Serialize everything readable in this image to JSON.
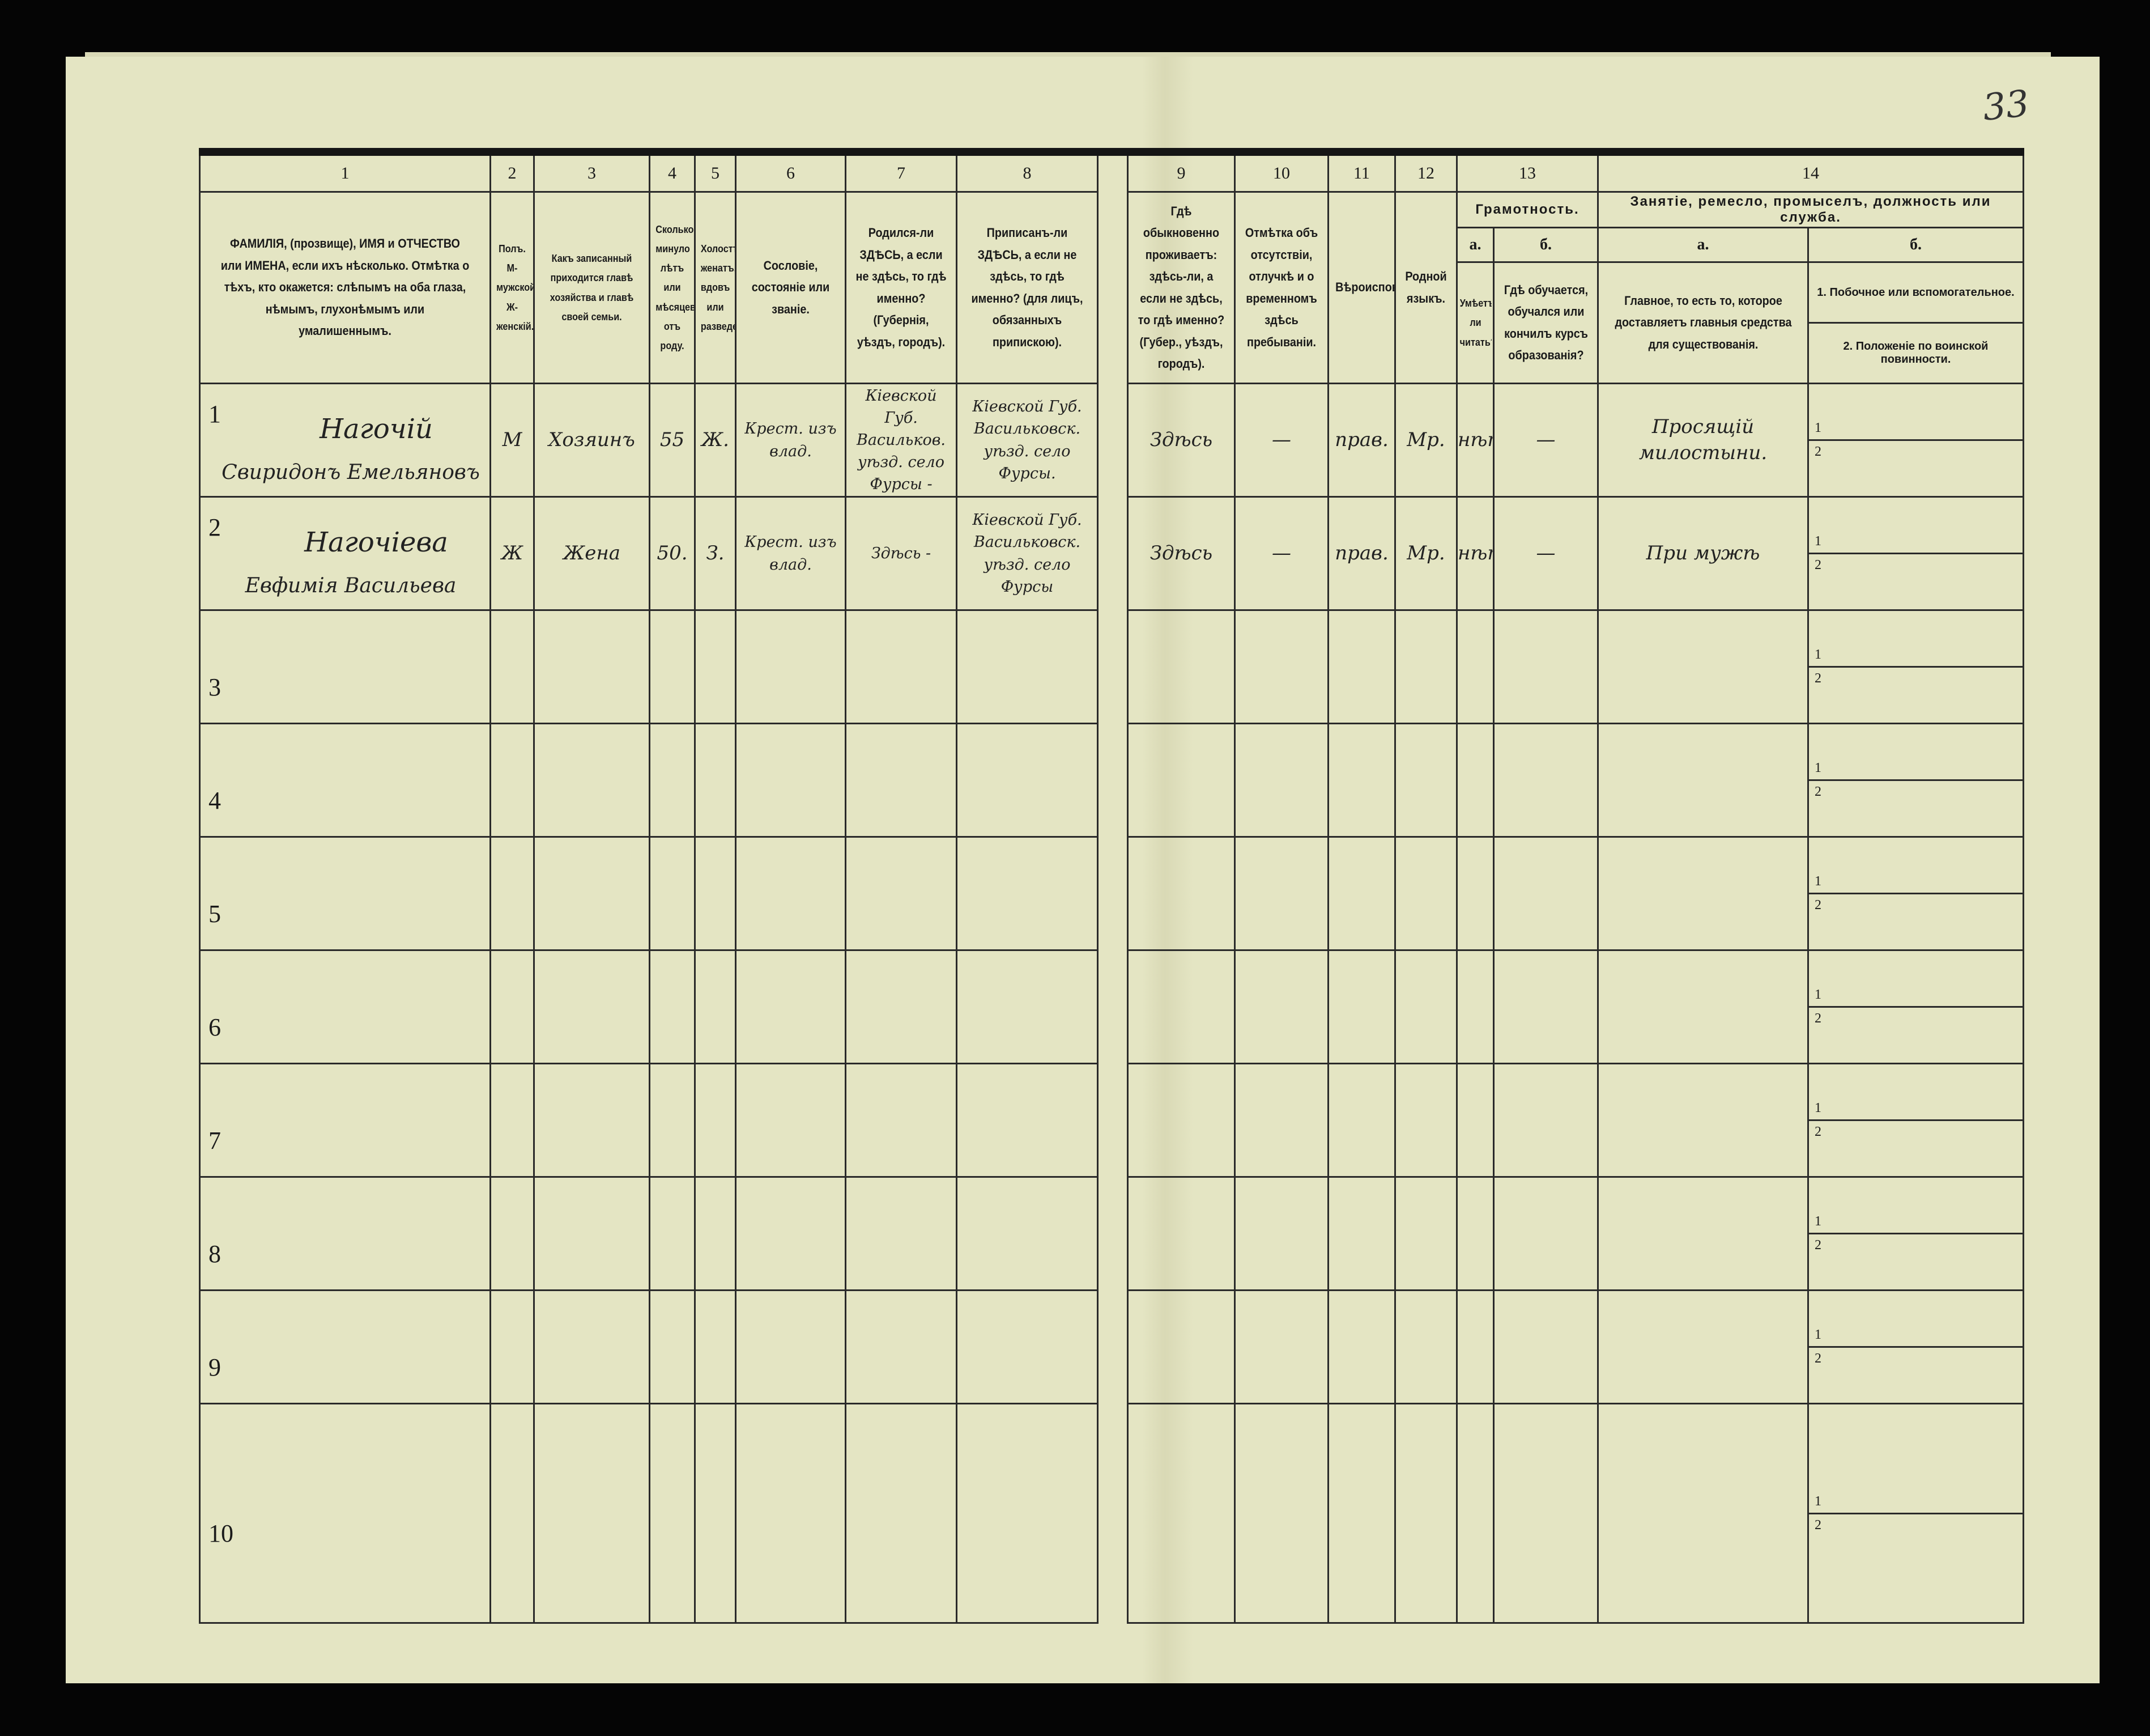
{
  "page_number": "33",
  "colors": {
    "paper": "#e4e5c3",
    "ink": "#1a1a1a",
    "background": "#050505"
  },
  "header": {
    "columns": [
      {
        "num": "1",
        "text": "ФАМИЛІЯ, (прозвище), ИМЯ и ОТЧЕСТВО или ИМЕНА, если ихъ нѣсколько. Отмѣтка о тѣхъ, кто окажется: слѣпымъ на оба глаза, нѣмымъ, глухонѣмымъ или умалишеннымъ."
      },
      {
        "num": "2",
        "text": "Полъ. М-мужской. Ж-женскій."
      },
      {
        "num": "3",
        "text": "Какъ записанный приходится главѣ хозяйства и главѣ своей семьи."
      },
      {
        "num": "4",
        "text": "Сколько минуло лѣтъ или мѣсяцевъ отъ роду."
      },
      {
        "num": "5",
        "text": "Холостъ, женатъ, вдовъ или разведенъ."
      },
      {
        "num": "6",
        "text": "Сословіе, состояніе или званіе."
      },
      {
        "num": "7",
        "text": "Родился-ли ЗДѢСЬ, а если не здѣсь, то гдѣ именно? (Губернія, уѣздъ, городъ)."
      },
      {
        "num": "8",
        "text": "Приписанъ-ли ЗДѢСЬ, а если не здѣсь, то гдѣ именно? (для лицъ, обязанныхъ припискою)."
      },
      {
        "num": "9",
        "text": "Гдѣ обыкновенно проживаетъ: здѣсь-ли, а если не здѣсь, то гдѣ именно? (Губер., уѣздъ, городъ)."
      },
      {
        "num": "10",
        "text": "Отмѣтка объ отсутствіи, отлучкѣ и о временномъ здѣсь пребываніи."
      },
      {
        "num": "11",
        "text": "Вѣроисповѣданіе."
      },
      {
        "num": "12",
        "text": "Родной языкъ."
      }
    ],
    "col13": {
      "num": "13",
      "title": "Грамотность.",
      "a_label": "а.",
      "b_label": "б.",
      "a_text": "Умѣетъ-ли читать?",
      "b_text": "Гдѣ обучается, обучался или кончилъ курсъ образованія?"
    },
    "col14": {
      "num": "14",
      "title": "Занятіе, ремесло, промыселъ, должность или служба.",
      "a_label": "а.",
      "b_label": "б.",
      "a_text": "Главное, то есть то, которое доставляетъ главныя средства для существованія.",
      "b_text_1": "1. Побочное или вспомогательное.",
      "b_text_2": "2. Положеніе по воинской повинности."
    }
  },
  "sub_row_labels": [
    "1",
    "2"
  ],
  "rows": [
    {
      "num": "1",
      "surname": "Нагочій",
      "given": "Свиридонъ Емельяновъ",
      "sex": "М",
      "relation": "Хозяинъ",
      "age": "55",
      "marital": "Ж.",
      "estate": "Крест. изъ влад.",
      "birthplace": "Кіевской Губ. Васильков. уѣзд. село Фурсы -",
      "registered": "Кіевской Губ. Васильковск. уѣзд. село Фурсы.",
      "residence": "Здѣсь",
      "absence": "—",
      "religion": "прав.",
      "language": "Мр.",
      "literate": "нѣтъ",
      "education": "—",
      "occupation_main": "Просящій милостыни.",
      "occupation_side": "",
      "military": ""
    },
    {
      "num": "2",
      "surname": "Нагочіева",
      "given": "Евфимія Васильева",
      "sex": "Ж",
      "relation": "Жена",
      "age": "50.",
      "marital": "З.",
      "estate": "Крест. изъ влад.",
      "birthplace": "Здѣсь -",
      "registered": "Кіевской Губ. Васильковск. уѣзд. село Фурсы",
      "residence": "Здѣсь",
      "absence": "—",
      "religion": "прав.",
      "language": "Мр.",
      "literate": "нѣтъ",
      "education": "—",
      "occupation_main": "При мужѣ",
      "occupation_side": "",
      "military": ""
    },
    {
      "num": "3"
    },
    {
      "num": "4"
    },
    {
      "num": "5"
    },
    {
      "num": "6"
    },
    {
      "num": "7"
    },
    {
      "num": "8"
    },
    {
      "num": "9"
    },
    {
      "num": "10"
    }
  ]
}
